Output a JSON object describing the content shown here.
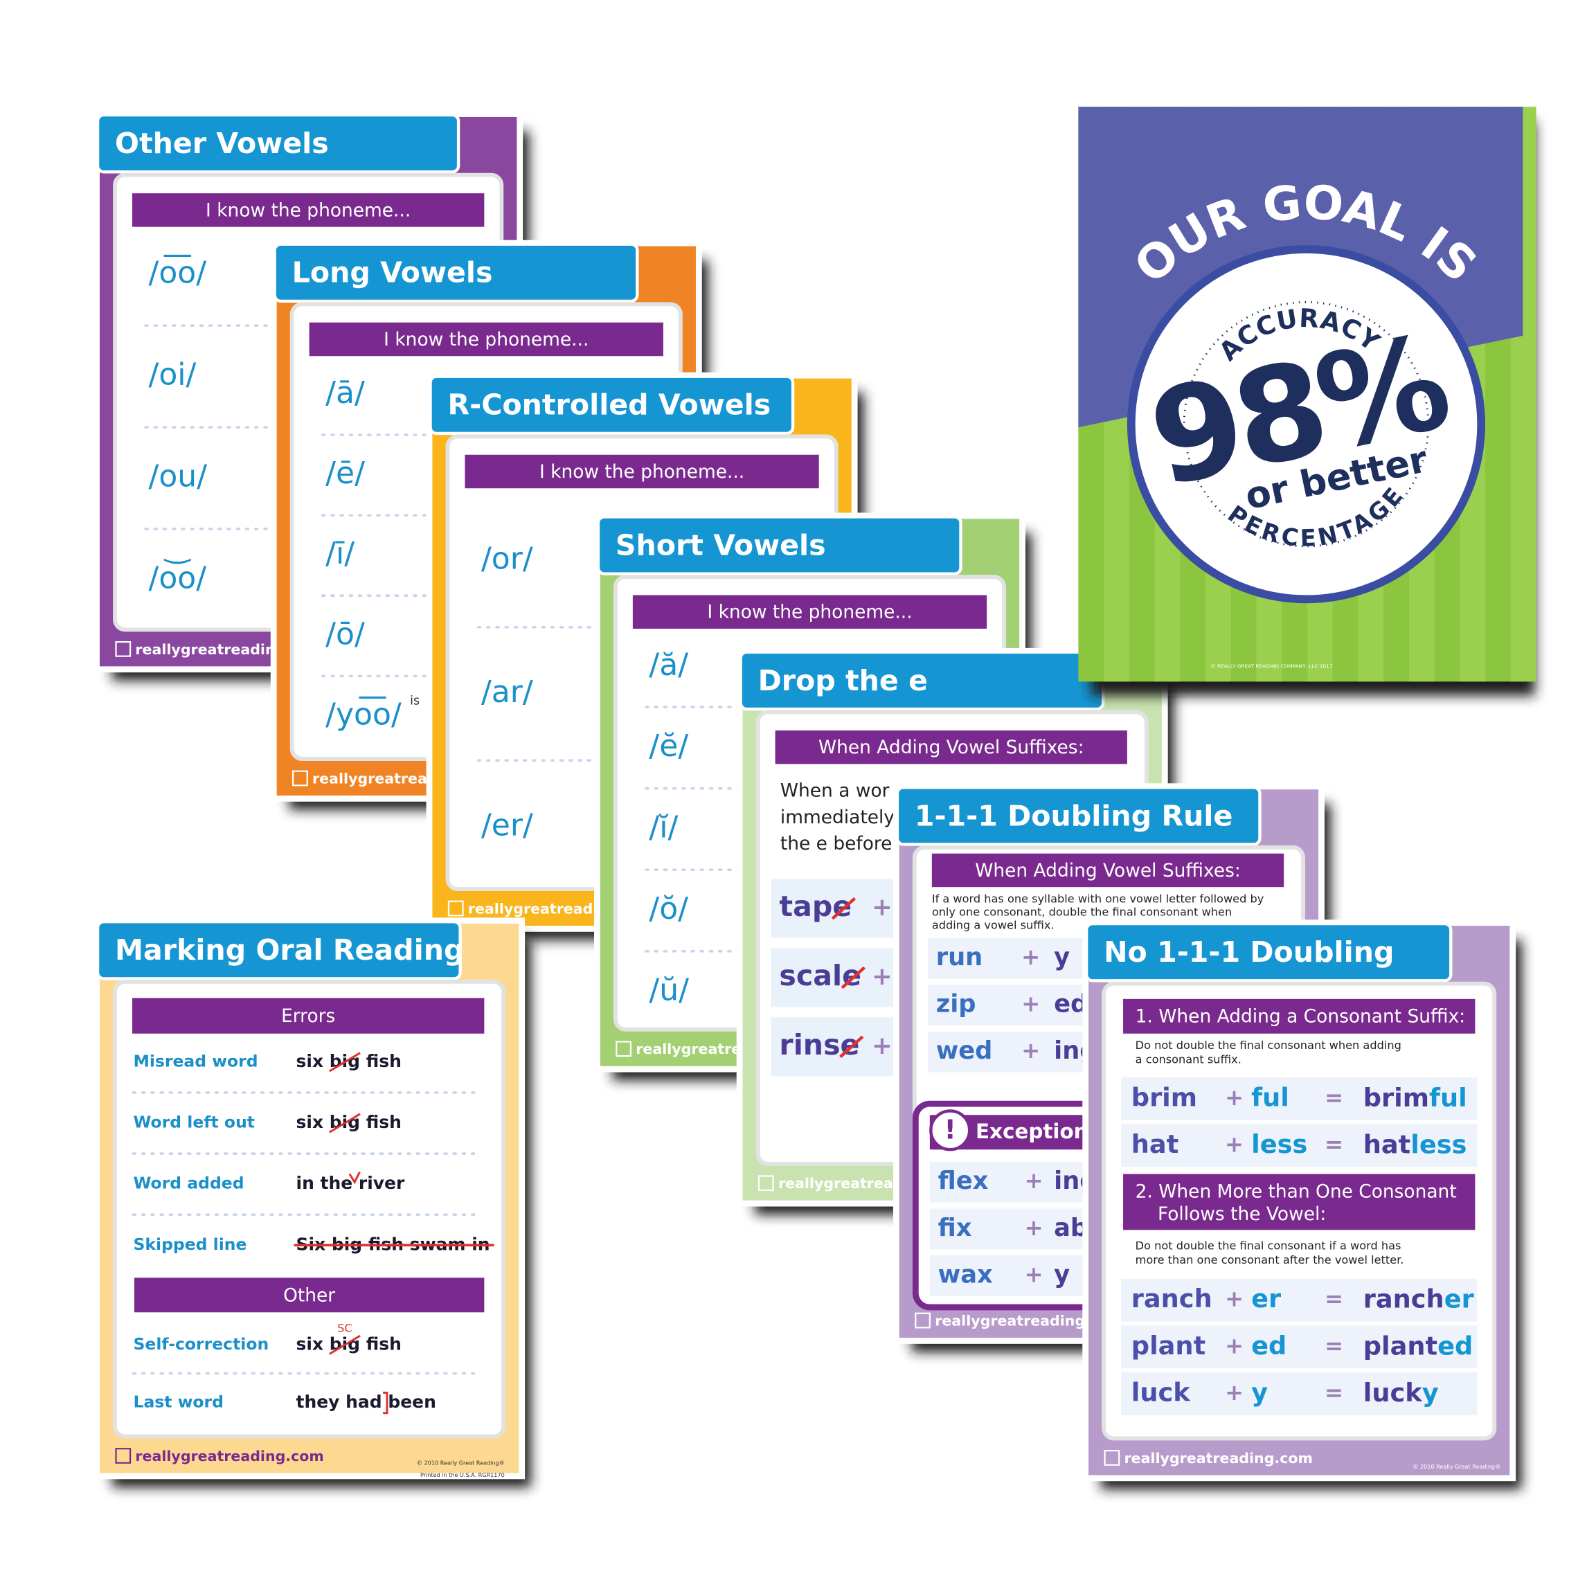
{
  "other_vowels": {
    "title": "Other Vowels",
    "header": "I know the phoneme...",
    "phonemes": [
      "/o͞o/",
      "/oi/",
      "/ou/",
      "/o͝o/"
    ],
    "footer": "reallygreatreading.com"
  },
  "long_vowels": {
    "title": "Long Vowels",
    "header": "I know the phoneme...",
    "phonemes": [
      "/ā/",
      "/ē/",
      "/ī/",
      "/ō/",
      "/yo͞o/"
    ],
    "fragment": "is",
    "footer": "reallygreatreading.com"
  },
  "r_controlled": {
    "title": "R-Controlled Vowels",
    "header": "I know the phoneme...",
    "phonemes": [
      "/or/",
      "/ar/",
      "/er/"
    ],
    "footer": "reallygreatreading.com"
  },
  "short_vowels": {
    "title": "Short Vowels",
    "header": "I know the phoneme...",
    "phonemes": [
      "/ă/",
      "/ĕ/",
      "/ĭ/",
      "/ŏ/",
      "/ŭ/"
    ],
    "footer": "reallygreatreading.com"
  },
  "drop_e": {
    "title": "Drop the e",
    "header": "When Adding Vowel Suffixes:",
    "lines": [
      "When a wor",
      "immediately",
      "the e before"
    ],
    "plus": "+",
    "words": [
      "tape",
      "scale",
      "rinse"
    ],
    "footer": "reallygreatreading.com"
  },
  "doubling": {
    "title": "1-1-1 Doubling Rule",
    "header": "When Adding Vowel Suffixes:",
    "note": [
      "If a word has one syllable with one vowel letter followed by",
      "only one consonant, double the final consonant when",
      "adding a vowel suffix."
    ],
    "plus": "+",
    "rows": [
      {
        "word": "run",
        "suffix": "y"
      },
      {
        "word": "zip",
        "suffix": "ed"
      },
      {
        "word": "wed",
        "suffix": "ing"
      }
    ],
    "exception_icon": "!",
    "exception": "Exception",
    "exception_rows": [
      {
        "word": "flex",
        "suffix": "ing"
      },
      {
        "word": "fix",
        "suffix": "able"
      },
      {
        "word": "wax",
        "suffix": "y"
      }
    ],
    "footer": "reallygreatreading.com"
  },
  "no_doubling": {
    "title": "No 1-1-1 Doubling",
    "plus": "+",
    "equals": "=",
    "section1": {
      "header": "1. When Adding a Consonant Suffix:",
      "note": [
        "Do not double the final consonant when adding",
        "a consonant suffix."
      ],
      "rows": [
        {
          "word": "brim",
          "suffix": "ful",
          "result": [
            "brim",
            "ful"
          ]
        },
        {
          "word": "hat",
          "suffix": "less",
          "result": [
            "hat",
            "less"
          ]
        }
      ]
    },
    "section2": {
      "header": [
        "2. When More than One Consonant",
        "Follows the Vowel:"
      ],
      "note": [
        "Do not double the final consonant if a word has",
        "more than one consonant after the vowel letter."
      ],
      "rows": [
        {
          "word": "ranch",
          "suffix": "er",
          "result": [
            "ranch",
            "er"
          ]
        },
        {
          "word": "plant",
          "suffix": "ed",
          "result": [
            "plant",
            "ed"
          ]
        },
        {
          "word": "luck",
          "suffix": "y",
          "result": [
            "luck",
            "y"
          ]
        }
      ]
    },
    "footer": "reallygreatreading.com",
    "copyright": "© 2010 Really Great Reading®",
    "printed": "Printed in the U.S.A.   RGR1170"
  },
  "marking": {
    "title": "Marking Oral Reading",
    "errors_header": "Errors",
    "errors": [
      {
        "label": "Misread word",
        "example": "six big fish"
      },
      {
        "label": "Word left out",
        "example": "six big fish"
      },
      {
        "label": "Word added",
        "example": "in the river"
      },
      {
        "label": "Skipped line",
        "example": "Six big fish swam in"
      }
    ],
    "other_header": "Other",
    "other": [
      {
        "label": "Self-correction",
        "example": "six big fish",
        "mark": "SC"
      },
      {
        "label": "Last word",
        "example": "they had been"
      }
    ],
    "footer": "reallygreatreading.com",
    "copyright": "© 2010 Really Great Reading®",
    "printed": "Printed in the U.S.A.   RGR1170"
  },
  "goal": {
    "headline": "OUR GOAL IS",
    "top_arc": "ACCURACY",
    "value": "98%",
    "subtext": "or better",
    "bottom_arc": "PERCENTAGE",
    "copyright": "© REALLY GREAT READING COMPANY, LLC 2017"
  }
}
